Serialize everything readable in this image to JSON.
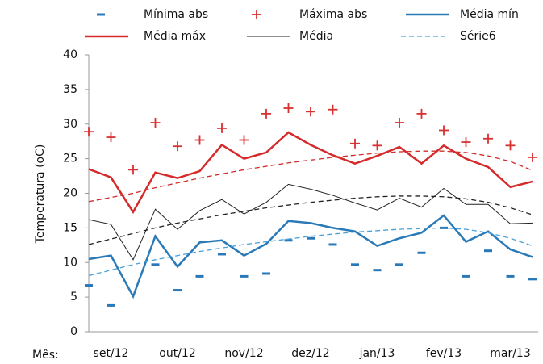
{
  "chart_data": {
    "type": "line",
    "ylabel": "Temperatura (oC)",
    "xlabel": "Mês:",
    "categories": [
      null,
      "set/12",
      null,
      null,
      "out/12",
      null,
      null,
      "nov/12",
      null,
      null,
      "dez/12",
      null,
      null,
      "jan/13",
      null,
      null,
      "fev/13",
      null,
      null,
      "mar/13",
      null
    ],
    "ylim": [
      0,
      40
    ],
    "yticks": [
      0,
      5,
      10,
      15,
      20,
      25,
      30,
      35,
      40
    ],
    "grid": false,
    "series": [
      {
        "name": "Mínima abs",
        "color": "#2a78b8",
        "marker": "dash",
        "line": "none",
        "values": [
          6.7,
          3.8,
          null,
          9.7,
          6.0,
          8.0,
          11.2,
          8.0,
          8.4,
          13.2,
          13.5,
          12.6,
          9.7,
          8.9,
          9.7,
          11.4,
          15.0,
          8.0,
          11.7,
          8.0,
          7.6
        ]
      },
      {
        "name": "Máxima abs",
        "color": "#d93030",
        "marker": "plus",
        "line": "none",
        "values": [
          28.9,
          28.1,
          23.4,
          30.2,
          26.8,
          27.7,
          29.4,
          27.7,
          31.5,
          32.3,
          31.8,
          32.1,
          27.2,
          26.9,
          30.2,
          31.5,
          29.1,
          27.4,
          27.9,
          26.9,
          25.2
        ]
      },
      {
        "name": "Média mín",
        "color": "#2a7ab8",
        "marker": "none",
        "line": "solid",
        "width": 2.5,
        "values": [
          10.5,
          11.0,
          5.1,
          13.8,
          9.4,
          12.9,
          13.2,
          11.0,
          12.7,
          16.0,
          15.7,
          15.0,
          14.5,
          12.4,
          13.5,
          14.3,
          16.8,
          13.0,
          14.5,
          11.9,
          10.8
        ]
      },
      {
        "name": "Média máx",
        "color": "#d42a2a",
        "marker": "none",
        "line": "solid",
        "width": 2.5,
        "values": [
          23.5,
          22.3,
          17.3,
          23.0,
          22.2,
          23.2,
          27.0,
          25.0,
          25.9,
          28.8,
          27.0,
          25.5,
          24.3,
          25.4,
          26.7,
          24.3,
          26.9,
          25.0,
          23.8,
          20.9,
          21.7
        ]
      },
      {
        "name": "Média",
        "color": "#222222",
        "marker": "none",
        "line": "solid",
        "width": 1,
        "values": [
          16.2,
          15.5,
          10.4,
          17.7,
          14.8,
          17.5,
          19.1,
          17.0,
          18.7,
          21.3,
          20.6,
          19.7,
          18.6,
          17.6,
          19.3,
          18.0,
          20.7,
          18.4,
          18.4,
          15.6,
          15.7
        ]
      },
      {
        "name": "Série6",
        "color": "#4aa0d8",
        "marker": "none",
        "line": "dashed",
        "width": 1.3,
        "values": [
          8.1,
          8.9,
          9.7,
          10.4,
          11.0,
          11.6,
          12.1,
          12.6,
          13.0,
          13.4,
          13.8,
          14.1,
          14.4,
          14.6,
          14.8,
          14.9,
          15.0,
          14.8,
          14.3,
          13.5,
          12.4
        ]
      },
      {
        "color": "#222222",
        "marker": "none",
        "line": "dashed",
        "width": 1.3,
        "values": [
          12.6,
          13.4,
          14.2,
          15.0,
          15.7,
          16.3,
          16.9,
          17.4,
          17.9,
          18.3,
          18.7,
          19.0,
          19.3,
          19.5,
          19.6,
          19.6,
          19.5,
          19.2,
          18.7,
          17.9,
          16.9
        ]
      },
      {
        "color": "#d42a2a",
        "marker": "none",
        "line": "dashed",
        "width": 1.3,
        "values": [
          18.8,
          19.4,
          20.0,
          20.8,
          21.5,
          22.2,
          22.8,
          23.4,
          23.9,
          24.4,
          24.8,
          25.2,
          25.5,
          25.8,
          26.0,
          26.1,
          26.1,
          25.9,
          25.4,
          24.6,
          23.3
        ]
      }
    ]
  }
}
